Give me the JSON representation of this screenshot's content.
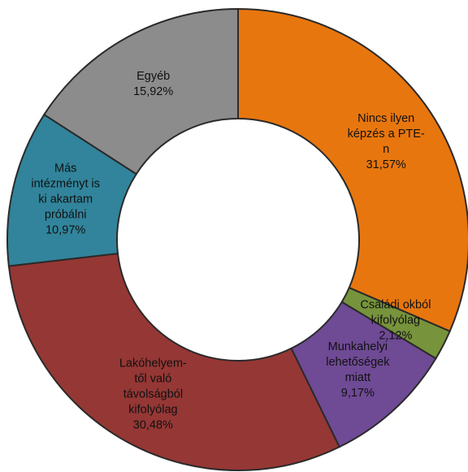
{
  "chart_data": {
    "type": "donut",
    "categories": [
      "Nincs ilyen\nképzés a PTE-\nn",
      "Családi okból\nkifolyólag",
      "Munkahelyi\nlehetőségek\nmiatt",
      "Lakóhelyem-\ntől való\ntávolságból\nkifolyólag",
      "Más\nintézményt is\nki akartam\npróbálni",
      "Egyéb"
    ],
    "values": [
      31.57,
      2.12,
      9.17,
      30.48,
      10.97,
      15.92
    ],
    "value_labels": [
      "31,57%",
      "2,12%",
      "9,17%",
      "30,48%",
      "10,97%",
      "15,92%"
    ],
    "colors": [
      "#e8760e",
      "#77933c",
      "#6f4a95",
      "#953735",
      "#31849b",
      "#8c8c8c"
    ]
  }
}
